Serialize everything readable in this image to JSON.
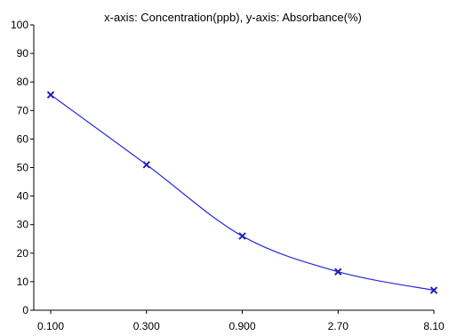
{
  "chart_data": {
    "type": "line",
    "title": "x-axis: Concentration(ppb), y-axis: Absorbance(%)",
    "xlabel": "",
    "ylabel": "",
    "categories": [
      "0.100",
      "0.300",
      "0.900",
      "2.70",
      "8.10"
    ],
    "series": [
      {
        "values": [
          75.5,
          51,
          26,
          13.5,
          7
        ]
      }
    ],
    "ylim": [
      0,
      100
    ],
    "yticks": [
      0,
      10,
      20,
      30,
      40,
      50,
      60,
      70,
      80,
      90,
      100
    ],
    "grid": false,
    "legend": "none",
    "smooth": true,
    "marker": "x",
    "colors": {
      "series": "#2b2bd6",
      "axis": "#000000"
    }
  }
}
